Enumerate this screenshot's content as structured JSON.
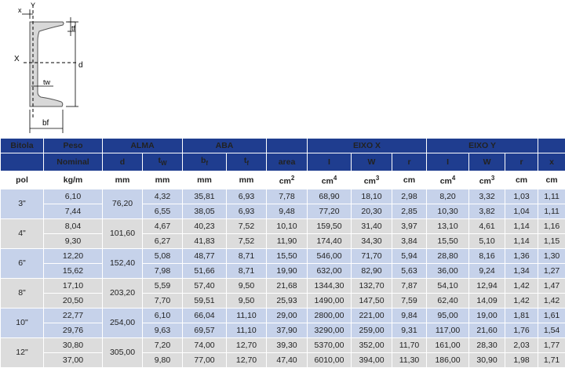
{
  "diagram": {
    "labels": {
      "x_top": "x",
      "y_top": "Y",
      "tf": "tf",
      "x_axis": "X",
      "tw": "tw",
      "d": "d",
      "bf": "bf"
    }
  },
  "header": {
    "row1": {
      "bitola": "Bitola",
      "peso": "Peso",
      "alma": "ALMA",
      "aba": "ABA",
      "eixo_x": "EIXO X",
      "eixo_y": "EIXO Y"
    },
    "row2": {
      "nominal": "Nominal",
      "d": "d",
      "tw": "t",
      "tw_sub": "W",
      "bf": "b",
      "bf_sub": "f",
      "tf": "t",
      "tf_sub": "f",
      "area": "area",
      "ix": "I",
      "wx": "W",
      "rx": "r",
      "iy": "I",
      "wy": "W",
      "ry": "r",
      "x": "x"
    },
    "row3": {
      "pol": "pol",
      "kgm": "kg/m",
      "mm1": "mm",
      "mm2": "mm",
      "mm3": "mm",
      "mm4": "mm",
      "cm2": "cm",
      "cm2_sup": "2",
      "cm4x": "cm",
      "cm4x_sup": "4",
      "cm3x": "cm",
      "cm3x_sup": "3",
      "cmx": "cm",
      "cm4y": "cm",
      "cm4y_sup": "4",
      "cm3y": "cm",
      "cm3y_sup": "3",
      "cmy": "cm",
      "cmx2": "cm"
    }
  },
  "rows": [
    {
      "bitola": "3\"",
      "d": "76,20",
      "sub": [
        {
          "peso": "6,10",
          "tw": "4,32",
          "bf": "35,81",
          "tf": "6,93",
          "area": "7,78",
          "ix": "68,90",
          "wx": "18,10",
          "rx": "2,98",
          "iy": "8,20",
          "wy": "3,32",
          "ry": "1,03",
          "x": "1,11"
        },
        {
          "peso": "7,44",
          "tw": "6,55",
          "bf": "38,05",
          "tf": "6,93",
          "area": "9,48",
          "ix": "77,20",
          "wx": "20,30",
          "rx": "2,85",
          "iy": "10,30",
          "wy": "3,82",
          "ry": "1,04",
          "x": "1,11"
        }
      ]
    },
    {
      "bitola": "4\"",
      "d": "101,60",
      "sub": [
        {
          "peso": "8,04",
          "tw": "4,67",
          "bf": "40,23",
          "tf": "7,52",
          "area": "10,10",
          "ix": "159,50",
          "wx": "31,40",
          "rx": "3,97",
          "iy": "13,10",
          "wy": "4,61",
          "ry": "1,14",
          "x": "1,16"
        },
        {
          "peso": "9,30",
          "tw": "6,27",
          "bf": "41,83",
          "tf": "7,52",
          "area": "11,90",
          "ix": "174,40",
          "wx": "34,30",
          "rx": "3,84",
          "iy": "15,50",
          "wy": "5,10",
          "ry": "1,14",
          "x": "1,15"
        }
      ]
    },
    {
      "bitola": "6\"",
      "d": "152,40",
      "sub": [
        {
          "peso": "12,20",
          "tw": "5,08",
          "bf": "48,77",
          "tf": "8,71",
          "area": "15,50",
          "ix": "546,00",
          "wx": "71,70",
          "rx": "5,94",
          "iy": "28,80",
          "wy": "8,16",
          "ry": "1,36",
          "x": "1,30"
        },
        {
          "peso": "15,62",
          "tw": "7,98",
          "bf": "51,66",
          "tf": "8,71",
          "area": "19,90",
          "ix": "632,00",
          "wx": "82,90",
          "rx": "5,63",
          "iy": "36,00",
          "wy": "9,24",
          "ry": "1,34",
          "x": "1,27"
        }
      ]
    },
    {
      "bitola": "8\"",
      "d": "203,20",
      "sub": [
        {
          "peso": "17,10",
          "tw": "5,59",
          "bf": "57,40",
          "tf": "9,50",
          "area": "21,68",
          "ix": "1344,30",
          "wx": "132,70",
          "rx": "7,87",
          "iy": "54,10",
          "wy": "12,94",
          "ry": "1,42",
          "x": "1,47"
        },
        {
          "peso": "20,50",
          "tw": "7,70",
          "bf": "59,51",
          "tf": "9,50",
          "area": "25,93",
          "ix": "1490,00",
          "wx": "147,50",
          "rx": "7,59",
          "iy": "62,40",
          "wy": "14,09",
          "ry": "1,42",
          "x": "1,42"
        }
      ]
    },
    {
      "bitola": "10\"",
      "d": "254,00",
      "sub": [
        {
          "peso": "22,77",
          "tw": "6,10",
          "bf": "66,04",
          "tf": "11,10",
          "area": "29,00",
          "ix": "2800,00",
          "wx": "221,00",
          "rx": "9,84",
          "iy": "95,00",
          "wy": "19,00",
          "ry": "1,81",
          "x": "1,61"
        },
        {
          "peso": "29,76",
          "tw": "9,63",
          "bf": "69,57",
          "tf": "11,10",
          "area": "37,90",
          "ix": "3290,00",
          "wx": "259,00",
          "rx": "9,31",
          "iy": "117,00",
          "wy": "21,60",
          "ry": "1,76",
          "x": "1,54"
        }
      ]
    },
    {
      "bitola": "12\"",
      "d": "305,00",
      "sub": [
        {
          "peso": "30,80",
          "tw": "7,20",
          "bf": "74,00",
          "tf": "12,70",
          "area": "39,30",
          "ix": "5370,00",
          "wx": "352,00",
          "rx": "11,70",
          "iy": "161,00",
          "wy": "28,30",
          "ry": "2,03",
          "x": "1,77"
        },
        {
          "peso": "37,00",
          "tw": "9,80",
          "bf": "77,00",
          "tf": "12,70",
          "area": "47,40",
          "ix": "6010,00",
          "wx": "394,00",
          "rx": "11,30",
          "iy": "186,00",
          "wy": "30,90",
          "ry": "1,98",
          "x": "1,71"
        }
      ]
    }
  ],
  "colors": {
    "header_blue": "#1f3d8f",
    "row_blue": "#c6d2ea",
    "row_gray": "#dcdcdc"
  }
}
